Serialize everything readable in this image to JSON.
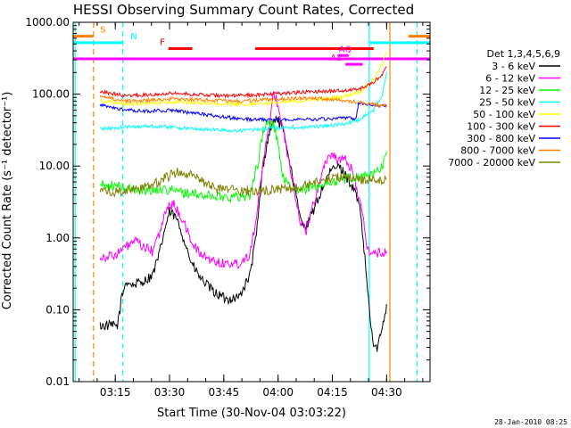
{
  "chart_data": {
    "type": "line",
    "title": "HESSI Observing Summary Count Rates, Corrected",
    "xlabel": "Start Time (30-Nov-04 03:03:22)",
    "ylabel": "Corrected Count Rate (s⁻¹ detector⁻¹)",
    "y_scale": "log",
    "ylim": [
      0.01,
      1000
    ],
    "xlim": [
      3.056,
      4.7
    ],
    "x_units": "hours UT",
    "x_ticks": [
      {
        "value": 3.25,
        "label": "03:15"
      },
      {
        "value": 3.5,
        "label": "03:30"
      },
      {
        "value": 3.75,
        "label": "03:45"
      },
      {
        "value": 4.0,
        "label": "04:00"
      },
      {
        "value": 4.25,
        "label": "04:15"
      },
      {
        "value": 4.5,
        "label": "04:30"
      }
    ],
    "y_ticks": [
      {
        "value": 1000,
        "label": "1000.00"
      },
      {
        "value": 100,
        "label": "100.00"
      },
      {
        "value": 10,
        "label": "10.00"
      },
      {
        "value": 1,
        "label": "1.00"
      },
      {
        "value": 0.1,
        "label": "0.10"
      },
      {
        "value": 0.01,
        "label": "0.01"
      }
    ],
    "legend_title": "Det 1,3,4,5,6,9",
    "legend_position": "right",
    "series": [
      {
        "name": "3 - 6 keV",
        "color": "#000000",
        "points": [
          [
            3.18,
            0.06
          ],
          [
            3.23,
            0.06
          ],
          [
            3.26,
            0.06
          ],
          [
            3.28,
            0.15
          ],
          [
            3.3,
            0.25
          ],
          [
            3.33,
            0.22
          ],
          [
            3.38,
            0.25
          ],
          [
            3.42,
            0.3
          ],
          [
            3.45,
            0.55
          ],
          [
            3.48,
            1.4
          ],
          [
            3.5,
            2.3
          ],
          [
            3.53,
            1.9
          ],
          [
            3.57,
            0.9
          ],
          [
            3.6,
            0.45
          ],
          [
            3.64,
            0.28
          ],
          [
            3.7,
            0.18
          ],
          [
            3.76,
            0.14
          ],
          [
            3.82,
            0.15
          ],
          [
            3.87,
            0.3
          ],
          [
            3.9,
            1.1
          ],
          [
            3.93,
            10
          ],
          [
            3.96,
            30
          ],
          [
            3.99,
            48
          ],
          [
            4.01,
            38
          ],
          [
            4.04,
            20
          ],
          [
            4.07,
            6
          ],
          [
            4.1,
            2.0
          ],
          [
            4.13,
            1.4
          ],
          [
            4.16,
            2.3
          ],
          [
            4.19,
            3.8
          ],
          [
            4.22,
            6.5
          ],
          [
            4.25,
            9
          ],
          [
            4.28,
            10
          ],
          [
            4.31,
            7.5
          ],
          [
            4.33,
            6
          ],
          [
            4.36,
            4
          ],
          [
            4.38,
            2.2
          ],
          [
            4.4,
            0.5
          ],
          [
            4.42,
            0.1
          ],
          [
            4.44,
            0.03
          ],
          [
            4.46,
            0.03
          ],
          [
            4.48,
            0.06
          ],
          [
            4.5,
            0.12
          ]
        ]
      },
      {
        "name": "6 - 12 keV",
        "color": "#ff00ff",
        "points": [
          [
            3.18,
            0.55
          ],
          [
            3.22,
            0.55
          ],
          [
            3.26,
            0.6
          ],
          [
            3.3,
            0.75
          ],
          [
            3.34,
            0.9
          ],
          [
            3.38,
            0.75
          ],
          [
            3.42,
            0.65
          ],
          [
            3.46,
            1.3
          ],
          [
            3.49,
            2.8
          ],
          [
            3.52,
            2.9
          ],
          [
            3.56,
            1.8
          ],
          [
            3.6,
            0.9
          ],
          [
            3.64,
            0.6
          ],
          [
            3.7,
            0.48
          ],
          [
            3.76,
            0.44
          ],
          [
            3.82,
            0.44
          ],
          [
            3.87,
            0.6
          ],
          [
            3.9,
            2
          ],
          [
            3.93,
            10
          ],
          [
            3.96,
            40
          ],
          [
            3.98,
            110
          ],
          [
            4.0,
            70
          ],
          [
            4.02,
            35
          ],
          [
            4.05,
            12
          ],
          [
            4.08,
            4
          ],
          [
            4.1,
            1.7
          ],
          [
            4.13,
            1.3
          ],
          [
            4.16,
            2.7
          ],
          [
            4.19,
            6
          ],
          [
            4.22,
            12
          ],
          [
            4.25,
            15
          ],
          [
            4.28,
            12
          ],
          [
            4.31,
            12
          ],
          [
            4.34,
            9
          ],
          [
            4.37,
            4
          ],
          [
            4.39,
            2
          ],
          [
            4.41,
            0.7
          ],
          [
            4.44,
            0.6
          ],
          [
            4.47,
            0.62
          ],
          [
            4.5,
            0.65
          ]
        ]
      },
      {
        "name": "12 - 25 keV",
        "color": "#00ff00",
        "points": [
          [
            3.18,
            5.5
          ],
          [
            3.25,
            5.2
          ],
          [
            3.32,
            4.8
          ],
          [
            3.4,
            4.6
          ],
          [
            3.48,
            4.8
          ],
          [
            3.56,
            4.3
          ],
          [
            3.64,
            3.9
          ],
          [
            3.72,
            3.8
          ],
          [
            3.8,
            3.7
          ],
          [
            3.87,
            3.9
          ],
          [
            3.91,
            12
          ],
          [
            3.93,
            30
          ],
          [
            3.95,
            40
          ],
          [
            3.98,
            38
          ],
          [
            4.0,
            20
          ],
          [
            4.02,
            7
          ],
          [
            4.05,
            6
          ],
          [
            4.07,
            4.5
          ],
          [
            4.1,
            4.5
          ],
          [
            4.15,
            5
          ],
          [
            4.2,
            5.5
          ],
          [
            4.25,
            6
          ],
          [
            4.3,
            6.5
          ],
          [
            4.35,
            7
          ],
          [
            4.4,
            7.2
          ],
          [
            4.45,
            8
          ],
          [
            4.48,
            10
          ],
          [
            4.5,
            16
          ]
        ]
      },
      {
        "name": "25 - 50 keV",
        "color": "#00ffff",
        "points": [
          [
            3.18,
            33
          ],
          [
            3.25,
            34
          ],
          [
            3.3,
            35
          ],
          [
            3.4,
            36
          ],
          [
            3.5,
            35
          ],
          [
            3.6,
            33
          ],
          [
            3.7,
            32
          ],
          [
            3.8,
            31
          ],
          [
            3.9,
            32
          ],
          [
            3.96,
            34
          ],
          [
            4.0,
            34
          ],
          [
            4.06,
            35
          ],
          [
            4.1,
            34
          ],
          [
            4.2,
            36
          ],
          [
            4.3,
            38
          ],
          [
            4.38,
            45
          ],
          [
            4.44,
            60
          ],
          [
            4.48,
            100
          ],
          [
            4.5,
            200
          ]
        ]
      },
      {
        "name": "50 - 100 keV",
        "color": "#ffff00",
        "points": [
          [
            3.18,
            82
          ],
          [
            3.25,
            75
          ],
          [
            3.3,
            72
          ],
          [
            3.4,
            74
          ],
          [
            3.5,
            78
          ],
          [
            3.6,
            76
          ],
          [
            3.7,
            74
          ],
          [
            3.8,
            72
          ],
          [
            3.9,
            74
          ],
          [
            4.0,
            76
          ],
          [
            4.1,
            80
          ],
          [
            4.2,
            85
          ],
          [
            4.3,
            92
          ],
          [
            4.38,
            110
          ],
          [
            4.44,
            160
          ],
          [
            4.48,
            260
          ],
          [
            4.5,
            380
          ]
        ]
      },
      {
        "name": "100 - 300 keV",
        "color": "#ff0000",
        "points": [
          [
            3.18,
            110
          ],
          [
            3.25,
            100
          ],
          [
            3.3,
            95
          ],
          [
            3.4,
            98
          ],
          [
            3.5,
            104
          ],
          [
            3.6,
            100
          ],
          [
            3.7,
            96
          ],
          [
            3.8,
            95
          ],
          [
            3.9,
            98
          ],
          [
            4.0,
            102
          ],
          [
            4.1,
            106
          ],
          [
            4.2,
            110
          ],
          [
            4.3,
            112
          ],
          [
            4.38,
            120
          ],
          [
            4.44,
            145
          ],
          [
            4.48,
            190
          ],
          [
            4.5,
            240
          ]
        ]
      },
      {
        "name": "300 - 800 keV",
        "color": "#0000ff",
        "points": [
          [
            3.18,
            70
          ],
          [
            3.25,
            64
          ],
          [
            3.3,
            60
          ],
          [
            3.4,
            58
          ],
          [
            3.5,
            60
          ],
          [
            3.6,
            55
          ],
          [
            3.7,
            50
          ],
          [
            3.8,
            46
          ],
          [
            3.9,
            44
          ],
          [
            4.0,
            44
          ],
          [
            4.1,
            45
          ],
          [
            4.2,
            45
          ],
          [
            4.3,
            46
          ],
          [
            4.36,
            46
          ],
          [
            4.37,
            75
          ],
          [
            4.42,
            72
          ],
          [
            4.46,
            70
          ],
          [
            4.5,
            68
          ]
        ]
      },
      {
        "name": "800 - 7000 keV",
        "color": "#ff8000",
        "points": [
          [
            3.18,
            95
          ],
          [
            3.25,
            85
          ],
          [
            3.3,
            80
          ],
          [
            3.4,
            82
          ],
          [
            3.5,
            86
          ],
          [
            3.6,
            84
          ],
          [
            3.7,
            82
          ],
          [
            3.8,
            80
          ],
          [
            3.9,
            82
          ],
          [
            4.0,
            86
          ],
          [
            4.1,
            88
          ],
          [
            4.2,
            86
          ],
          [
            4.3,
            82
          ],
          [
            4.38,
            76
          ],
          [
            4.44,
            72
          ],
          [
            4.5,
            68
          ]
        ]
      },
      {
        "name": "7000 - 20000 keV",
        "color": "#808000",
        "points": [
          [
            3.18,
            4.5
          ],
          [
            3.25,
            4.4
          ],
          [
            3.3,
            4.5
          ],
          [
            3.36,
            4.8
          ],
          [
            3.42,
            5.5
          ],
          [
            3.48,
            6.8
          ],
          [
            3.54,
            8.5
          ],
          [
            3.6,
            7.5
          ],
          [
            3.66,
            5.8
          ],
          [
            3.72,
            4.8
          ],
          [
            3.78,
            4.6
          ],
          [
            3.84,
            4.5
          ],
          [
            3.9,
            4.5
          ],
          [
            3.96,
            4.6
          ],
          [
            4.02,
            4.8
          ],
          [
            4.08,
            5.0
          ],
          [
            4.14,
            5.5
          ],
          [
            4.2,
            6.2
          ],
          [
            4.26,
            6.8
          ],
          [
            4.32,
            7.0
          ],
          [
            4.38,
            6.6
          ],
          [
            4.44,
            6.5
          ],
          [
            4.5,
            6.5
          ]
        ]
      }
    ],
    "vertical_markers": [
      {
        "x": 3.065,
        "color": "#00ffff",
        "style": "solid"
      },
      {
        "x": 3.15,
        "color": "#ff8000",
        "style": "dashed"
      },
      {
        "x": 3.285,
        "color": "#00ffff",
        "style": "dashed"
      },
      {
        "x": 4.42,
        "color": "#00ffff",
        "style": "solid"
      },
      {
        "x": 4.515,
        "color": "#ff8000",
        "style": "solid"
      },
      {
        "x": 4.64,
        "color": "#00ffff",
        "style": "dashed"
      }
    ],
    "flag_bars": [
      {
        "label": "S",
        "color": "#ff8000",
        "x1": 3.056,
        "x2": 3.15,
        "y": 640,
        "label_x": 3.18,
        "label_color": "#ff8000"
      },
      {
        "label": "",
        "color": "#ff8000",
        "x1": 4.6,
        "x2": 4.7,
        "y": 640,
        "label_x": null,
        "label_color": "#ff8000"
      },
      {
        "label": "N",
        "color": "#00ffff",
        "x1": 3.056,
        "x2": 3.285,
        "y": 520,
        "label_x": 3.32,
        "label_color": "#00ffff"
      },
      {
        "label": "",
        "color": "#00ffff",
        "x1": 4.42,
        "x2": 4.7,
        "y": 520,
        "label_x": null,
        "label_color": "#00ffff"
      },
      {
        "label": "F",
        "color": "#ff0000",
        "x1": 3.495,
        "x2": 3.605,
        "y": 430,
        "label_x": 3.455,
        "label_color": "#ff0000"
      },
      {
        "label": "",
        "color": "#ff0000",
        "x1": 3.895,
        "x2": 4.44,
        "y": 430,
        "label_x": null,
        "label_color": "#ff0000"
      },
      {
        "label": "",
        "color": "#ff00ff",
        "x1": 3.056,
        "x2": 4.7,
        "y": 310,
        "label_x": null,
        "label_color": "#ff00ff"
      },
      {
        "label": "AQ",
        "color": "#ff00ff",
        "x1": 4.275,
        "x2": 4.325,
        "y": 345,
        "label_x": 4.28,
        "label_color": "#ff00ff"
      },
      {
        "label": "A1",
        "color": "#ff00ff",
        "x1": 4.31,
        "x2": 4.39,
        "y": 260,
        "label_x": 4.24,
        "label_color": "#ff00ff"
      }
    ]
  },
  "footer": {
    "timestamp": "28-Jan-2010 08:25"
  }
}
